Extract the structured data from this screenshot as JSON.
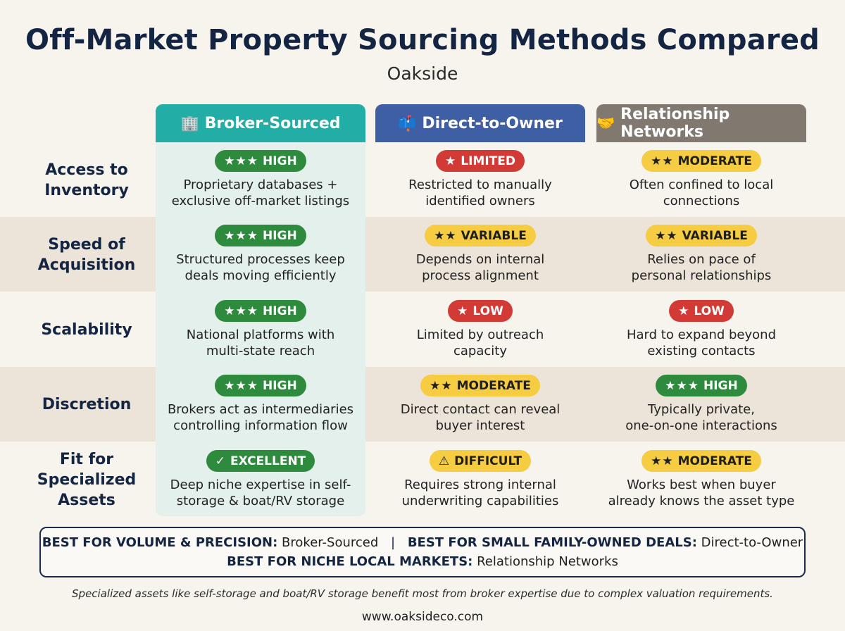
{
  "header": {
    "title": "Off-Market Property Sourcing Methods Compared",
    "subtitle": "Oakside"
  },
  "colors": {
    "broker": "#22aea6",
    "direct": "#3e5fa3",
    "network": "#817970",
    "high": "#2e8b3e",
    "low": "#d23a35",
    "moderate": "#f5cc42"
  },
  "columns": [
    {
      "icon": "🏢",
      "icon_name": "office-building-icon",
      "label": "Broker-Sourced"
    },
    {
      "icon": "📫",
      "icon_name": "mailbox-icon",
      "label": "Direct-to-Owner"
    },
    {
      "icon": "🤝",
      "icon_name": "handshake-icon",
      "label": "Relationship Networks"
    }
  ],
  "rows": [
    {
      "label": "Access to Inventory",
      "cells": [
        {
          "stars": "★★★",
          "rating": "HIGH",
          "desc1": "Proprietary databases +",
          "desc2": "exclusive off-market listings"
        },
        {
          "stars": "★",
          "rating": "LIMITED",
          "desc1": "Restricted to manually",
          "desc2": "identified owners"
        },
        {
          "stars": "★★",
          "rating": "MODERATE",
          "desc1": "Often confined to local",
          "desc2": "connections"
        }
      ]
    },
    {
      "label": "Speed of Acquisition",
      "cells": [
        {
          "stars": "★★★",
          "rating": "HIGH",
          "desc1": "Structured processes keep",
          "desc2": "deals moving efficiently"
        },
        {
          "stars": "★★",
          "rating": "VARIABLE",
          "desc1": "Depends on internal",
          "desc2": "process alignment"
        },
        {
          "stars": "★★",
          "rating": "VARIABLE",
          "desc1": "Relies on pace of",
          "desc2": "personal relationships"
        }
      ]
    },
    {
      "label": "Scalability",
      "cells": [
        {
          "stars": "★★★",
          "rating": "HIGH",
          "desc1": "National platforms with",
          "desc2": "multi-state reach"
        },
        {
          "stars": "★",
          "rating": "LOW",
          "desc1": "Limited by outreach",
          "desc2": "capacity"
        },
        {
          "stars": "★",
          "rating": "LOW",
          "desc1": "Hard to expand beyond",
          "desc2": "existing contacts"
        }
      ]
    },
    {
      "label": "Discretion",
      "cells": [
        {
          "stars": "★★★",
          "rating": "HIGH",
          "desc1": "Brokers act as intermediaries",
          "desc2": "controlling information flow"
        },
        {
          "stars": "★★",
          "rating": "MODERATE",
          "desc1": "Direct contact can reveal",
          "desc2": "buyer interest"
        },
        {
          "stars": "★★★",
          "rating": "HIGH",
          "desc1": "Typically private,",
          "desc2": "one-on-one interactions"
        }
      ]
    },
    {
      "label": "Fit for Specialized Assets",
      "cells": [
        {
          "stars": "✓",
          "rating": "EXCELLENT",
          "desc1": "Deep niche expertise in self-",
          "desc2": "storage & boat/RV storage"
        },
        {
          "stars": "⚠",
          "rating": "DIFFICULT",
          "desc1": "Requires strong internal",
          "desc2": "underwriting capabilities"
        },
        {
          "stars": "★★",
          "rating": "MODERATE",
          "desc1": "Works best when buyer",
          "desc2": "already knows the asset type"
        }
      ]
    }
  ],
  "summary": {
    "volume_label": "BEST FOR VOLUME & PRECISION:",
    "volume_value": "Broker-Sourced",
    "divider": "|",
    "family_label": "BEST FOR SMALL FAMILY-OWNED DEALS:",
    "family_value": "Direct-to-Owner",
    "niche_label": "BEST FOR NICHE LOCAL MARKETS:",
    "niche_value": "Relationship Networks"
  },
  "footnote": "Specialized assets like self-storage and boat/RV storage benefit most from broker expertise due to complex valuation requirements.",
  "website": "www.oaksideco.com"
}
